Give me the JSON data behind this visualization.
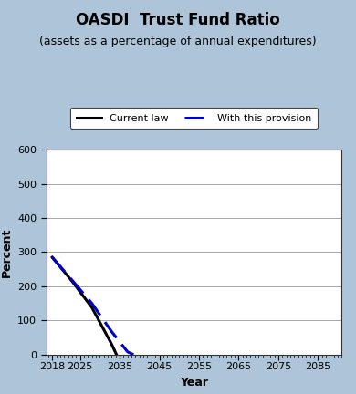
{
  "title": "OASDI  Trust Fund Ratio",
  "subtitle": "(assets as a percentage of annual expenditures)",
  "xlabel": "Year",
  "ylabel": "Percent",
  "background_color": "#aec4d8",
  "plot_bg_color": "#ffffff",
  "ylim": [
    0,
    600
  ],
  "yticks": [
    0,
    100,
    200,
    300,
    400,
    500,
    600
  ],
  "xlim": [
    2016.5,
    2091
  ],
  "xticks": [
    2018,
    2025,
    2035,
    2045,
    2055,
    2065,
    2075,
    2085
  ],
  "current_law": {
    "x": [
      2018,
      2023,
      2028,
      2033,
      2034.2
    ],
    "y": [
      285,
      215,
      138,
      30,
      0
    ],
    "color": "#000000",
    "linestyle": "solid",
    "linewidth": 2.2,
    "label": "Current law"
  },
  "provision": {
    "x": [
      2018,
      2023,
      2028,
      2033,
      2037,
      2038.5
    ],
    "y": [
      285,
      218,
      150,
      67,
      8,
      0
    ],
    "color": "#0000cc",
    "linestyle": "dashed",
    "linewidth": 2.2,
    "label": "With this provision"
  },
  "title_fontsize": 12,
  "subtitle_fontsize": 9,
  "axis_label_fontsize": 9,
  "tick_fontsize": 8,
  "legend_fontsize": 8
}
